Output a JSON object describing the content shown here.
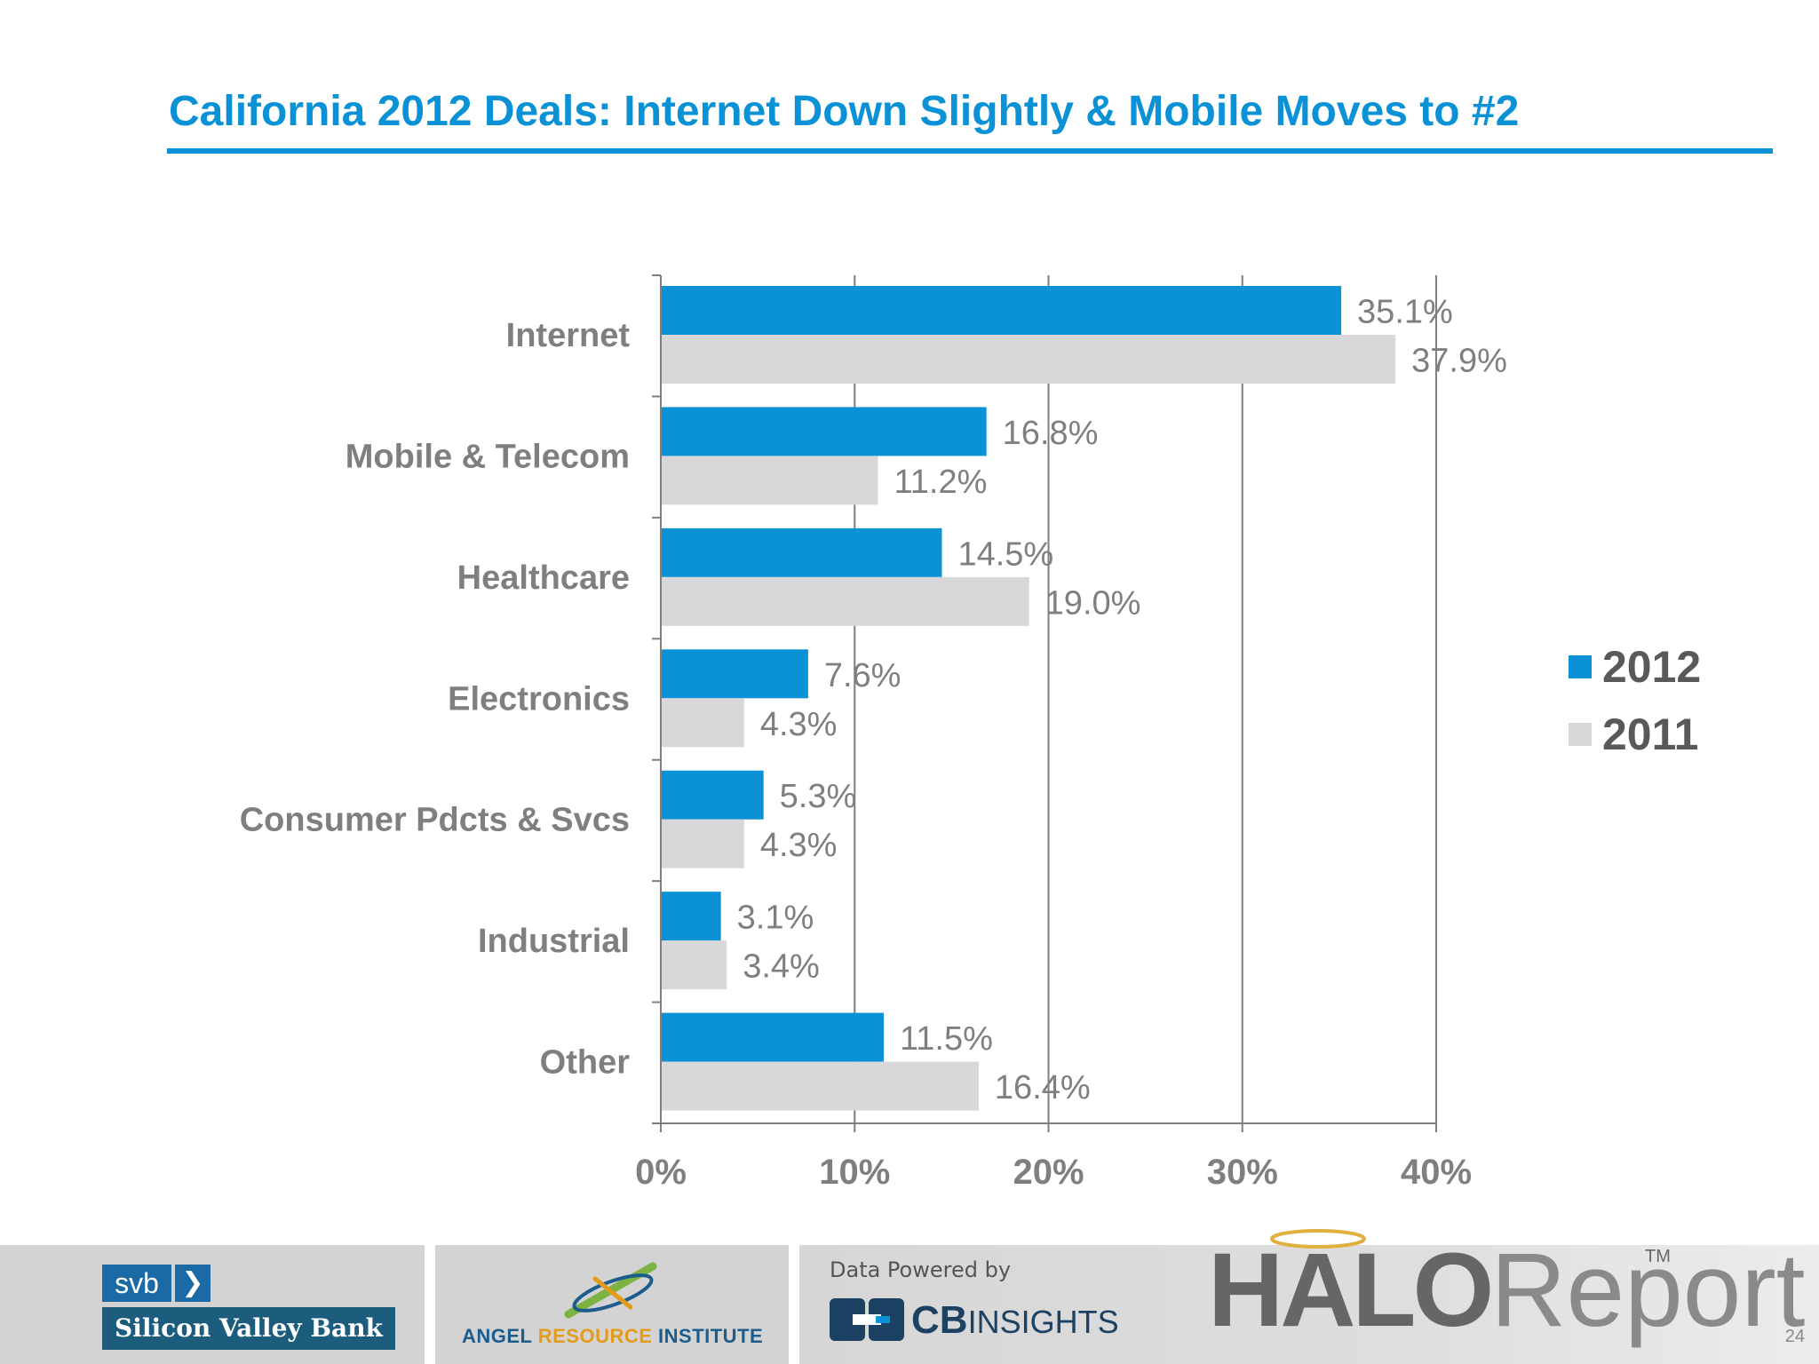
{
  "title": "California 2012 Deals: Internet Down Slightly & Mobile Moves to #2",
  "colors": {
    "accent": "#0a91d6",
    "series_2012": "#0a91d6",
    "series_2011": "#d8d8da",
    "text": "#7f7f7f"
  },
  "chart_data": {
    "type": "bar",
    "orientation": "horizontal",
    "categories": [
      "Internet",
      "Mobile & Telecom",
      "Healthcare",
      "Electronics",
      "Consumer Pdcts & Svcs",
      "Industrial",
      "Other"
    ],
    "series": [
      {
        "name": "2012",
        "values": [
          35.1,
          16.8,
          14.5,
          7.6,
          5.3,
          3.1,
          11.5
        ],
        "labels": [
          "35.1%",
          "16.8%",
          "14.5%",
          "7.6%",
          "5.3%",
          "3.1%",
          "11.5%"
        ]
      },
      {
        "name": "2011",
        "values": [
          37.9,
          11.2,
          19.0,
          4.3,
          4.3,
          3.4,
          16.4
        ],
        "labels": [
          "37.9%",
          "11.2%",
          "19.0%",
          "4.3%",
          "4.3%",
          "3.4%",
          "16.4%"
        ]
      }
    ],
    "xlim": [
      0,
      40
    ],
    "xticks": [
      0,
      10,
      20,
      30,
      40
    ],
    "xtick_labels": [
      "0%",
      "10%",
      "20%",
      "30%",
      "40%"
    ],
    "grid": true,
    "legend_position": "right"
  },
  "footer": {
    "svb_short": "svb",
    "svb_name": "Silicon Valley Bank",
    "ari_name_1": "ANGEL ",
    "ari_name_2": "RESOURCE",
    "ari_name_3": " INSTITUTE",
    "cb_powered": "Data Powered by",
    "cb_brand": "CB",
    "cb_insights": "INSIGHTS",
    "halo": "HALO",
    "report": "Report",
    "tm": "TM",
    "page_number": "24"
  }
}
